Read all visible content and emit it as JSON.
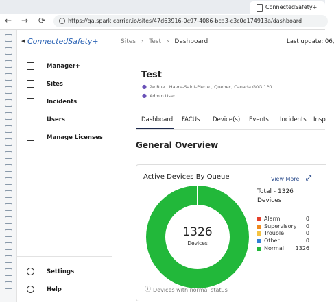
{
  "browser": {
    "tab_title": "ConnectedSafety+",
    "url": "https://qa.spark.carrier.io/sites/47d63916-0c97-4086-bca3-c3c0e174913a/dashboard"
  },
  "sidebar": {
    "logo": "ConnectedSafety+",
    "menu": [
      "Manager+",
      "Sites",
      "Incidents",
      "Users",
      "Manage Licenses"
    ],
    "footer": [
      "Settings",
      "Help"
    ]
  },
  "header": {
    "breadcrumb": [
      "Sites",
      "Test",
      "Dashboard"
    ],
    "last_update": "Last update: 06,"
  },
  "site": {
    "name": "Test",
    "address": "2e Rue , Havre-Saint-Pierre , Quebec, Canada G0G 1P0",
    "user": "Admin User"
  },
  "tabs": [
    "Dashboard",
    "FACUs",
    "Device(s)",
    "Events",
    "Incidents",
    "Insp"
  ],
  "section_title": "General Overview",
  "card": {
    "title": "Active Devices By Queue",
    "link": "View More",
    "center_value": "1326",
    "center_label": "Devices",
    "total": "Total - 1326",
    "total_unit": "Devices",
    "legend": [
      {
        "name": "Alarm",
        "value": 0,
        "color": "#e5402a"
      },
      {
        "name": "Supervisory",
        "value": 0,
        "color": "#f08a1c"
      },
      {
        "name": "Trouble",
        "value": 0,
        "color": "#f5c342"
      },
      {
        "name": "Other",
        "value": 0,
        "color": "#2f7fd6"
      },
      {
        "name": "Normal",
        "value": 1326,
        "color": "#22b83a"
      }
    ],
    "footer": "Devices with normal status"
  }
}
